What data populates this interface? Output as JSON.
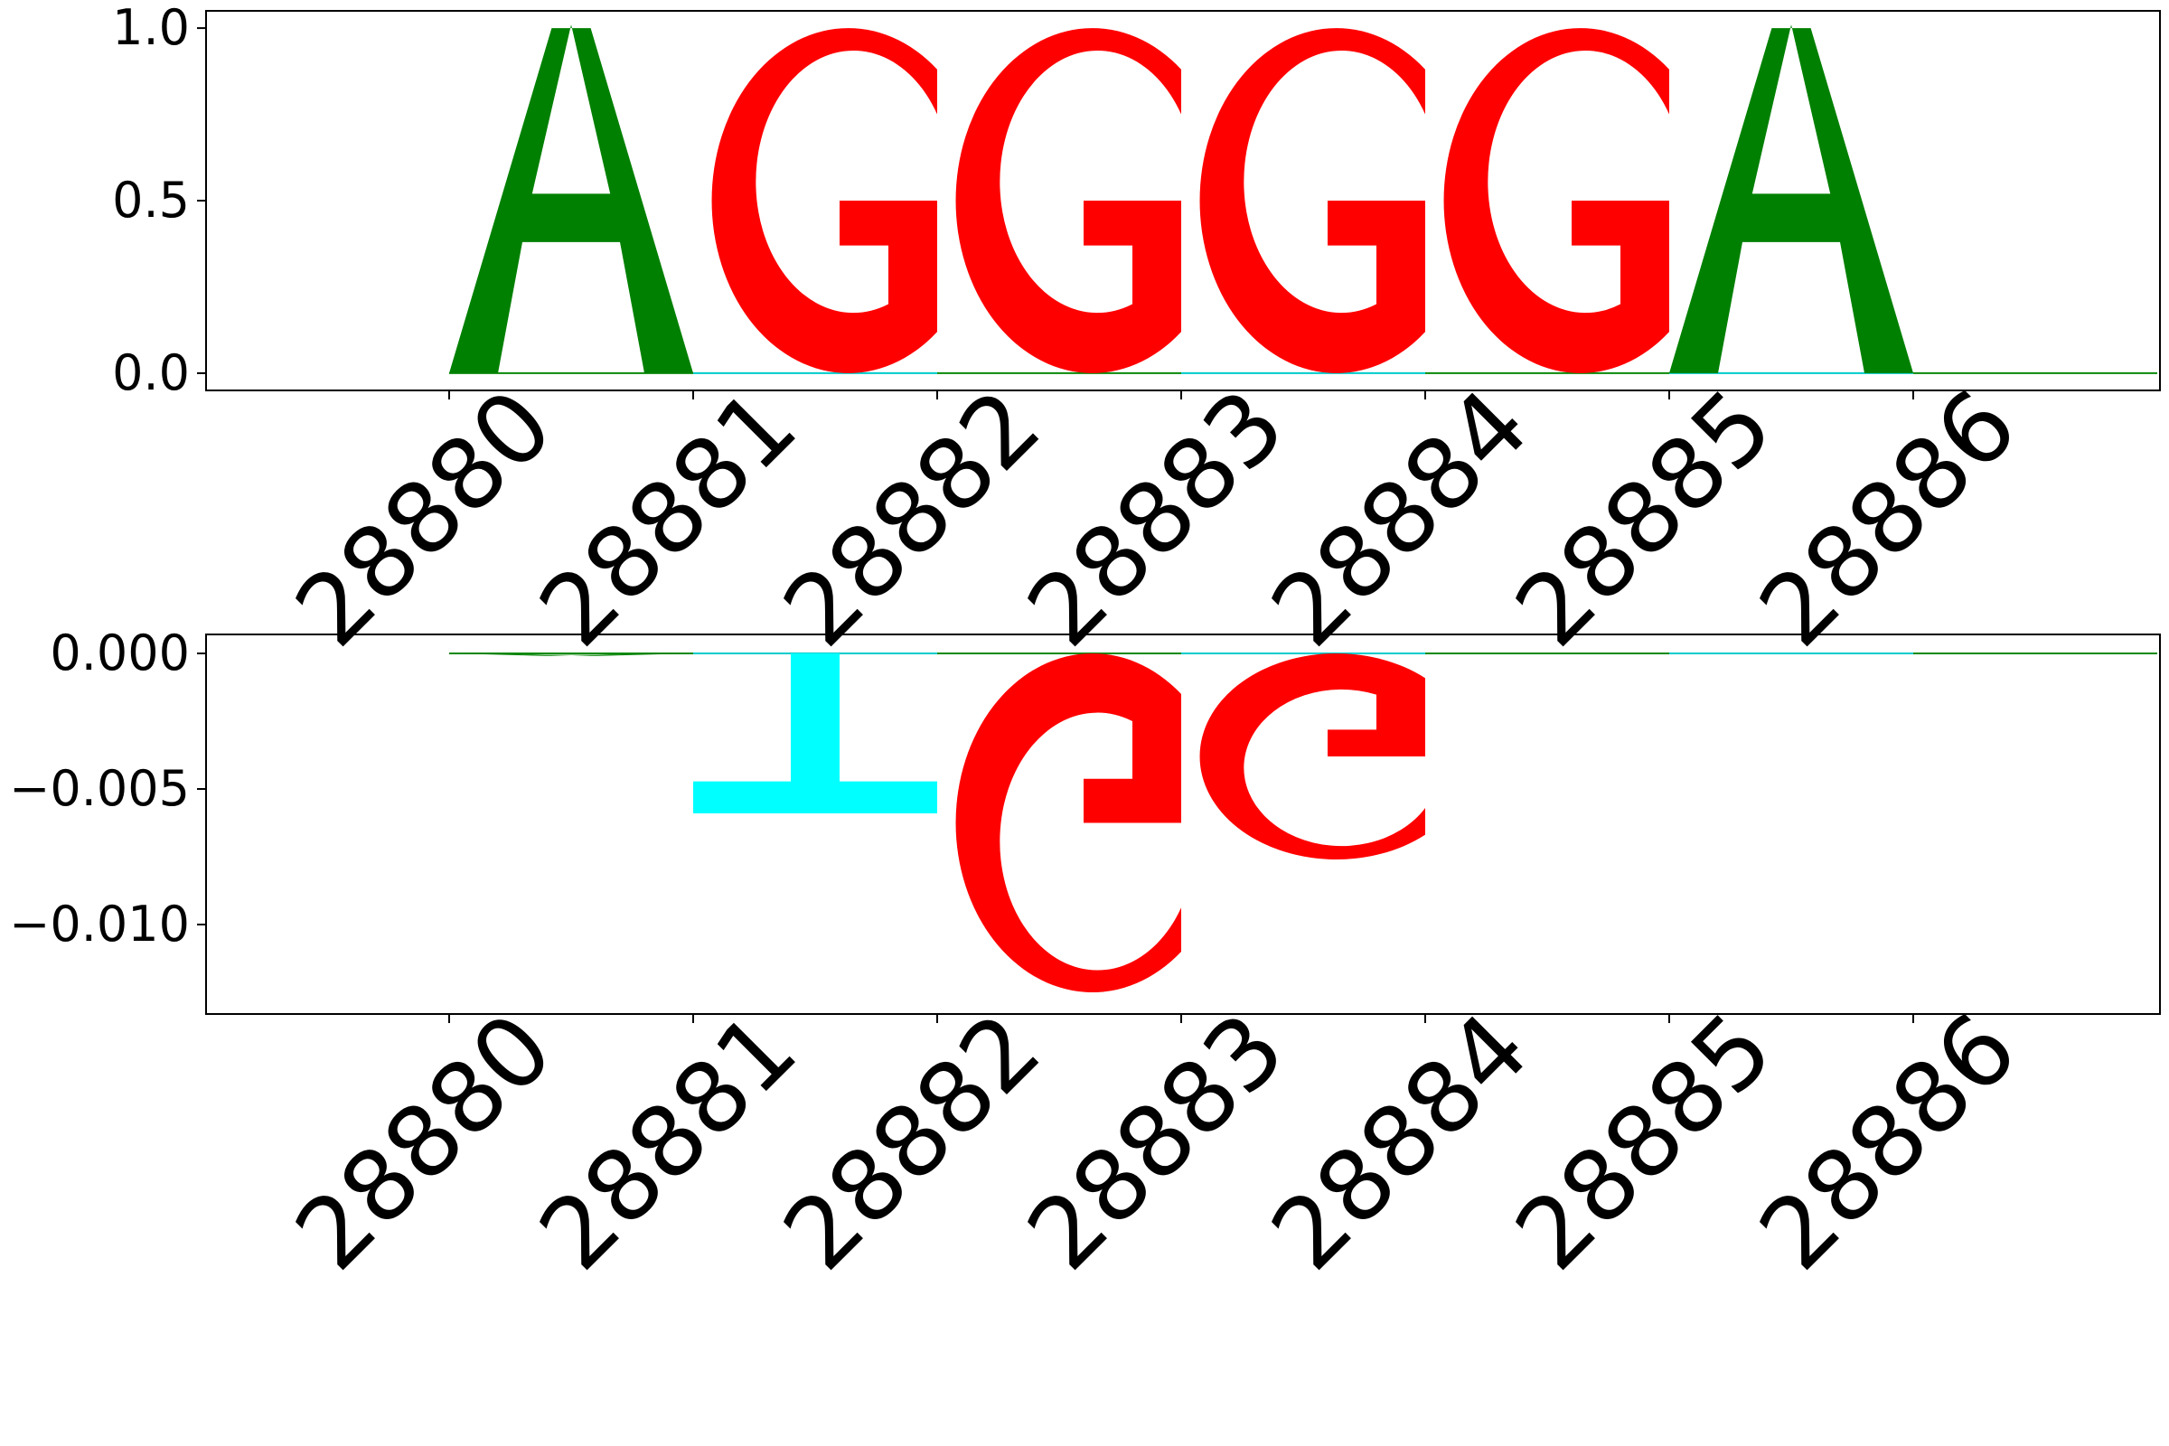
{
  "colors": {
    "A": "#008000",
    "C": "#0000ff",
    "G": "#ff0000",
    "T": "#00ffff"
  },
  "chart_data": [
    {
      "type": "sequence-logo",
      "positions": [
        "28880",
        "28881",
        "28882",
        "28883",
        "28884",
        "28885",
        "28886"
      ],
      "ylim": [
        -0.05,
        1.05
      ],
      "yticks": [
        {
          "value": 0.0,
          "label": "0.0"
        },
        {
          "value": 0.5,
          "label": "0.5"
        },
        {
          "value": 1.0,
          "label": "1.0"
        }
      ],
      "letters": [
        {
          "position": "28880",
          "letter": "A",
          "value": 1.0
        },
        {
          "position": "28881",
          "letter": "G",
          "value": 1.0
        },
        {
          "position": "28882",
          "letter": "G",
          "value": 1.0
        },
        {
          "position": "28883",
          "letter": "G",
          "value": 1.0
        },
        {
          "position": "28884",
          "letter": "G",
          "value": 1.0
        },
        {
          "position": "28885",
          "letter": "A",
          "value": 1.0
        },
        {
          "position": "28886",
          "letter": "G",
          "value": 0.0
        }
      ]
    },
    {
      "type": "sequence-logo",
      "positions": [
        "28880",
        "28881",
        "28882",
        "28883",
        "28884",
        "28885",
        "28886"
      ],
      "ylim": [
        -0.0133,
        0.0007
      ],
      "yticks": [
        {
          "value": 0.0,
          "label": "0.000"
        },
        {
          "value": -0.005,
          "label": "−0.005"
        },
        {
          "value": -0.01,
          "label": "−0.010"
        }
      ],
      "letters": [
        {
          "position": "28880",
          "letter": "A",
          "value": -0.0001
        },
        {
          "position": "28881",
          "letter": "T",
          "value": -0.0059
        },
        {
          "position": "28882",
          "letter": "G",
          "value": -0.0125
        },
        {
          "position": "28883",
          "letter": "G",
          "value": -0.0076
        },
        {
          "position": "28884",
          "letter": "G",
          "value": 0.0
        },
        {
          "position": "28885",
          "letter": "A",
          "value": 0.0
        },
        {
          "position": "28886",
          "letter": "G",
          "value": 0.0
        }
      ]
    }
  ]
}
